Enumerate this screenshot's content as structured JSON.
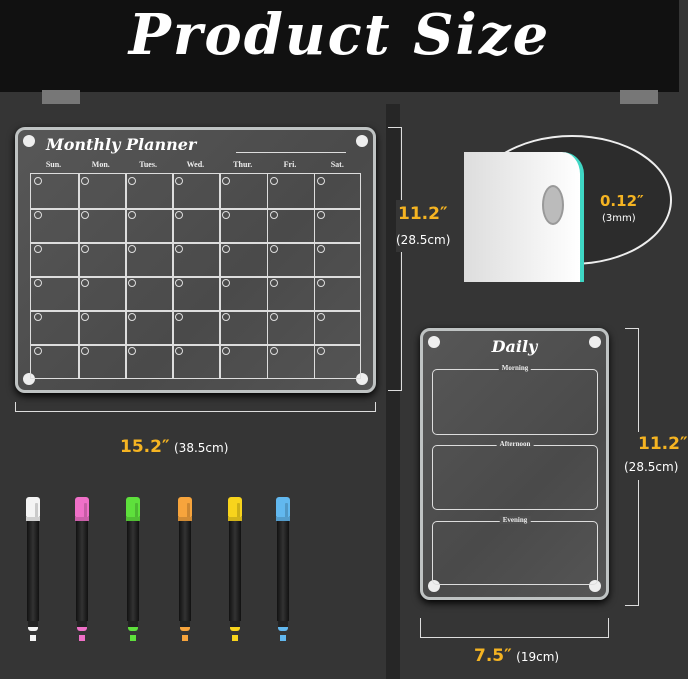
{
  "title": "Product Size",
  "monthly": {
    "title": "Monthly Planner",
    "days": [
      "Sun.",
      "Mon.",
      "Tues.",
      "Wed.",
      "Thur.",
      "Fri.",
      "Sat."
    ],
    "rows": 6,
    "height": "11.2″",
    "height_cm": "(28.5cm)",
    "width": "15.2″",
    "width_cm": "(38.5cm)"
  },
  "thickness": {
    "value": "0.12″",
    "metric": "(3mm)"
  },
  "daily": {
    "title": "Daily",
    "sections": [
      "Morning",
      "Afternoon",
      "Evening"
    ],
    "height": "11.2″",
    "height_cm": "(28.5cm)",
    "width": "7.5″",
    "width_cm": "(19cm)"
  },
  "markers": {
    "colors": [
      "#f4f4f4",
      "#f070c8",
      "#5ee03c",
      "#f7a43c",
      "#f8d41c",
      "#62b8ef"
    ]
  },
  "colors": {
    "accent": "#f5b422",
    "background": "#353535"
  }
}
